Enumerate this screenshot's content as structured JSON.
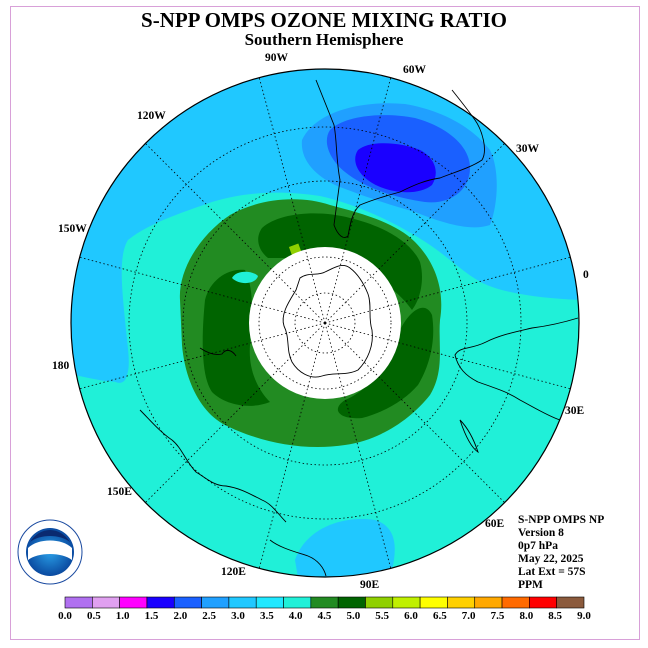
{
  "title": "S-NPP OMPS OZONE MIXING RATIO",
  "subtitle": "Southern Hemisphere",
  "info": {
    "instrument": "S-NPP OMPS NP",
    "version": "Version 8",
    "pressure": "0p7 hPa",
    "date": "May 22, 2025",
    "lat_ext": "Lat Ext = 57S",
    "units": "PPM"
  },
  "longitude_labels": [
    "90W",
    "60W",
    "30W",
    "0",
    "30E",
    "60E",
    "90E",
    "120E",
    "150E",
    "180",
    "150W",
    "120W"
  ],
  "legend": {
    "ticks": [
      "0.0",
      "0.5",
      "1.0",
      "1.5",
      "2.0",
      "2.5",
      "3.0",
      "3.5",
      "4.0",
      "4.5",
      "5.0",
      "5.5",
      "6.0",
      "6.5",
      "7.0",
      "7.5",
      "8.0",
      "8.5",
      "9.0"
    ],
    "colors": [
      "#b070f0",
      "#e0a0f0",
      "#ff00ff",
      "#1a00ff",
      "#1a60ff",
      "#20a0ff",
      "#20c8ff",
      "#20e8ff",
      "#20f0d8",
      "#228b22",
      "#006400",
      "#90d000",
      "#c0f000",
      "#ffff00",
      "#ffd000",
      "#ffa800",
      "#ff6a00",
      "#ff0000",
      "#8b5a3c"
    ]
  },
  "chart_data": {
    "type": "heatmap",
    "variable": "ozone mixing ratio",
    "units": "PPM",
    "levels": [
      0.0,
      0.5,
      1.0,
      1.5,
      2.0,
      2.5,
      3.0,
      3.5,
      4.0,
      4.5,
      5.0,
      5.5,
      6.0,
      6.5,
      7.0,
      7.5,
      8.0,
      8.5,
      9.0
    ],
    "field_regions": [
      {
        "range": "3.5-4.0",
        "description": "most of the hemisphere outer region"
      },
      {
        "range": "3.0-3.5",
        "description": "broad band from 180 through 150W-60W toward 0"
      },
      {
        "range": "2.5-3.0",
        "description": "over South America near 60W-30W"
      },
      {
        "range": "2.0-2.5",
        "description": "inner zone off South America"
      },
      {
        "range": "1.5-2.0",
        "description": "minimum near 45W off Argentina"
      },
      {
        "range": "4.0-4.5",
        "description": "ring around the polar cap"
      },
      {
        "range": "4.5-5.0",
        "description": "inner patches around Antarctica"
      },
      {
        "range": "5.0-5.5",
        "description": "small spot near 75W"
      }
    ],
    "polar_cap_no_data_beyond_lat": "57S"
  },
  "noaa_logo_text": "NOAA"
}
